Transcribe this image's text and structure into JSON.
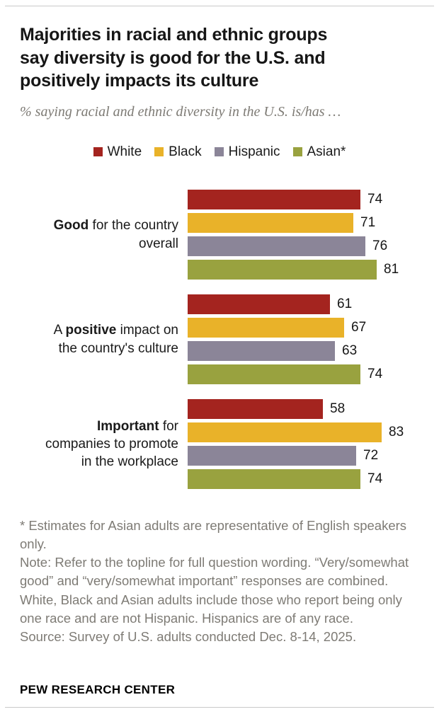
{
  "header": {
    "title": "Majorities in racial and ethnic groups\nsay diversity is good for the U.S. and\npositively impacts its culture",
    "subtitle": "% saying racial and ethnic diversity in the U.S. is/has …"
  },
  "chart_data": {
    "type": "bar",
    "orientation": "horizontal",
    "value_unit": "percent",
    "xlim": [
      0,
      100
    ],
    "grid": false,
    "legend_position": "top-center",
    "categories": [
      "Good for the country overall",
      "A positive impact on the country's culture",
      "Important for companies to promote in the workplace"
    ],
    "category_rich": [
      [
        {
          "text": "Good",
          "bold": true
        },
        {
          "text": " for the country\noverall",
          "bold": false
        }
      ],
      [
        {
          "text": "A ",
          "bold": false
        },
        {
          "text": "positive",
          "bold": true
        },
        {
          "text": " impact on\nthe country's culture",
          "bold": false
        }
      ],
      [
        {
          "text": "Important",
          "bold": true
        },
        {
          "text": " for\ncompanies to promote\nin the workplace",
          "bold": false
        }
      ]
    ],
    "series": [
      {
        "name": "White",
        "color": "#a4241f",
        "values": [
          74,
          61,
          58
        ]
      },
      {
        "name": "Black",
        "color": "#e9b229",
        "values": [
          71,
          67,
          83
        ]
      },
      {
        "name": "Hispanic",
        "color": "#8b8598",
        "values": [
          76,
          63,
          72
        ]
      },
      {
        "name": "Asian*",
        "color": "#99a23f",
        "values": [
          81,
          74,
          74
        ]
      }
    ]
  },
  "footer": {
    "asterisk_note": "* Estimates for Asian adults are representative of English speakers only.",
    "note": "Note: Refer to the topline for full question wording. “Very/somewhat good” and “very/somewhat important” responses are combined. White, Black and Asian adults include those who report being only one race and are not Hispanic. Hispanics are of any race.",
    "source": "Source: Survey of U.S. adults conducted Dec. 8-14, 2025.",
    "brand": "PEW RESEARCH CENTER"
  }
}
